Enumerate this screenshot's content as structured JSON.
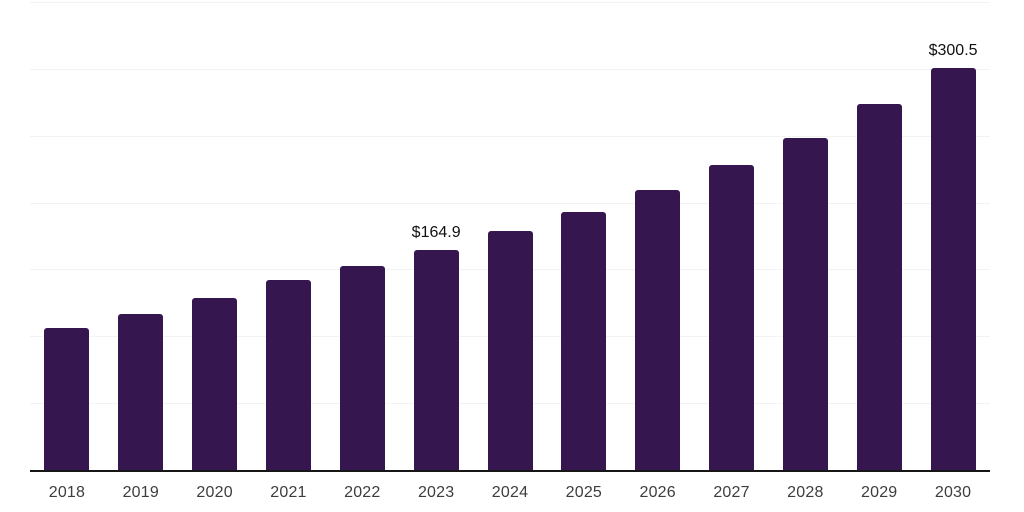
{
  "chart_data": {
    "type": "bar",
    "categories": [
      "2018",
      "2019",
      "2020",
      "2021",
      "2022",
      "2023",
      "2024",
      "2025",
      "2026",
      "2027",
      "2028",
      "2029",
      "2030"
    ],
    "values": [
      106.1,
      116.3,
      129.0,
      142.4,
      152.8,
      164.9,
      178.9,
      193.1,
      209.5,
      228.1,
      248.3,
      273.6,
      300.5
    ],
    "data_labels": [
      {
        "category": "2023",
        "text": "$164.9"
      },
      {
        "category": "2030",
        "text": "$300.5"
      }
    ],
    "title": "",
    "xlabel": "",
    "ylabel": "",
    "ylim": [
      0,
      350
    ],
    "grid": true,
    "gridline_step": 50,
    "legend_position": "none",
    "colors": {
      "bar": "#35164E",
      "background": "#ffffff",
      "gridline": "#f3f3f3",
      "axis_line": "#161616",
      "tick_label": "#3d3d3d",
      "data_label": "#101010"
    }
  }
}
